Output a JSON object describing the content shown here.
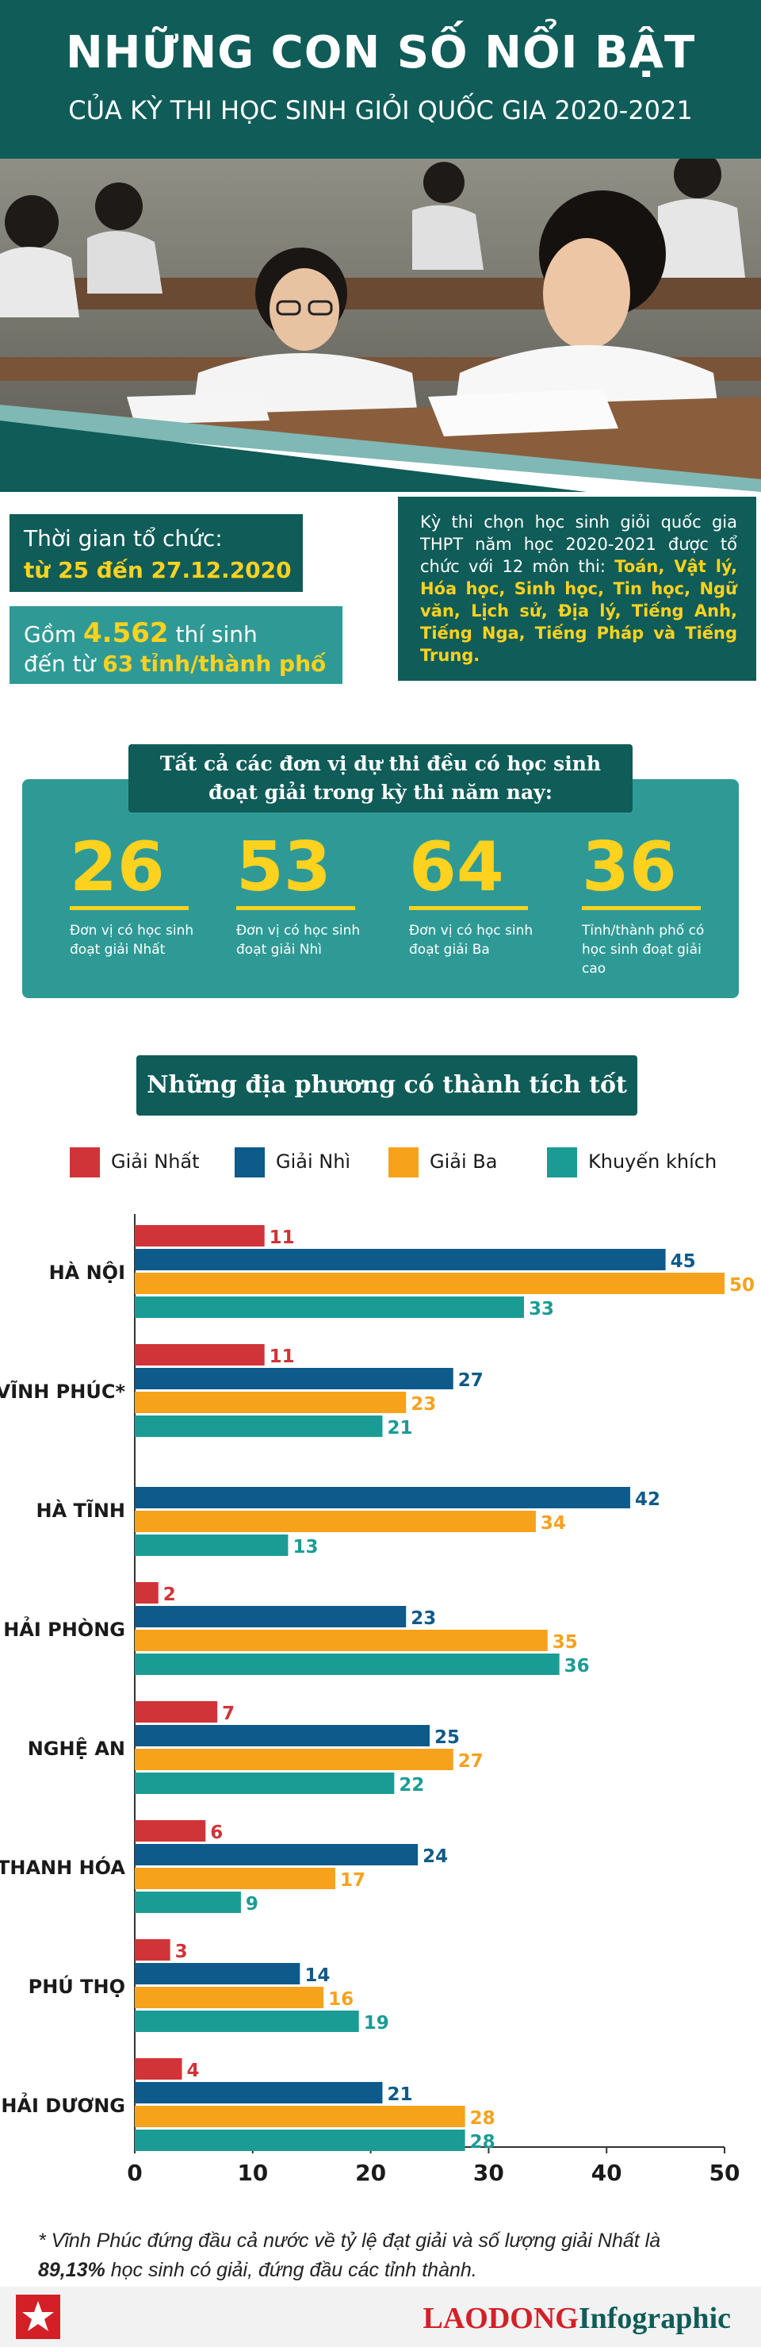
{
  "header": {
    "title": "NHỮNG CON SỐ NỔI BẬT",
    "subtitle": "CỦA KỲ THI HỌC SINH GIỎI QUỐC GIA 2020-2021"
  },
  "info": {
    "time_label": "Thời gian tổ chức:",
    "time_value": "từ 25 đến 27.12.2020",
    "candidates_prefix": "Gồm",
    "candidates_count": "4.562",
    "candidates_suffix": "thí sinh",
    "provinces_prefix": "đến từ",
    "provinces_count": "63",
    "provinces_suffix": "tỉnh/thành phố",
    "exam_intro": "Kỳ thi chọn học sinh giỏi quốc gia THPT năm học 2020-2021 được tổ chức với 12 môn thi:",
    "subjects": "Toán, Vật lý, Hóa học, Sinh học, Tin học, Ngữ văn, Lịch sử, Địa lý, Tiếng Anh, Tiếng Nga, Tiếng Pháp và Tiếng Trung."
  },
  "stats": {
    "heading_line1": "Tất cả các đơn vị dự thi đều có học sinh",
    "heading_line2": "đoạt giải trong kỳ thi năm nay:",
    "items": [
      {
        "value": "26",
        "label_line1": "Đơn vị có học sinh",
        "label_line2": "đoạt giải Nhất",
        "label_line3": ""
      },
      {
        "value": "53",
        "label_line1": "Đơn vị có học sinh",
        "label_line2": "đoạt giải Nhì",
        "label_line3": ""
      },
      {
        "value": "64",
        "label_line1": "Đơn vị có học sinh",
        "label_line2": "đoạt giải Ba",
        "label_line3": ""
      },
      {
        "value": "36",
        "label_line1": "Tỉnh/thành phố có",
        "label_line2": "học sinh đoạt giải",
        "label_line3": "cao"
      }
    ]
  },
  "chart_data": {
    "type": "bar",
    "orientation": "horizontal",
    "title": "Những địa phương có thành tích tốt",
    "categories": [
      "HÀ NỘI",
      "VĨNH PHÚC*",
      "HÀ TĨNH",
      "HẢI PHÒNG",
      "NGHỆ AN",
      "THANH HÓA",
      "PHÚ THỌ",
      "HẢI DƯƠNG"
    ],
    "series": [
      {
        "name": "Giải Nhất",
        "color": "#d13438",
        "values": [
          11,
          11,
          null,
          2,
          7,
          6,
          3,
          4
        ]
      },
      {
        "name": "Giải Nhì",
        "color": "#0e5a8a",
        "values": [
          45,
          27,
          42,
          23,
          25,
          24,
          14,
          21
        ]
      },
      {
        "name": "Giải Ba",
        "color": "#f7a21b",
        "values": [
          50,
          23,
          34,
          35,
          27,
          17,
          16,
          28
        ]
      },
      {
        "name": "Khuyến khích",
        "color": "#1a9c95",
        "values": [
          33,
          21,
          13,
          36,
          22,
          9,
          19,
          28
        ]
      }
    ],
    "xlim": [
      0,
      50
    ],
    "xticks": [
      "0",
      "10",
      "20",
      "30",
      "40",
      "50"
    ],
    "grid": false,
    "legend": "top"
  },
  "footnote": {
    "text": "* Vĩnh Phúc đứng đầu cả nước về tỷ lệ đạt giải và số lượng giải Nhất là",
    "highlight": "89,13%",
    "text2": "học sinh có giải, đứng đầu các tỉnh thành."
  },
  "footer": {
    "brand_main": "LAODONG",
    "brand_sub": "Infographic"
  }
}
